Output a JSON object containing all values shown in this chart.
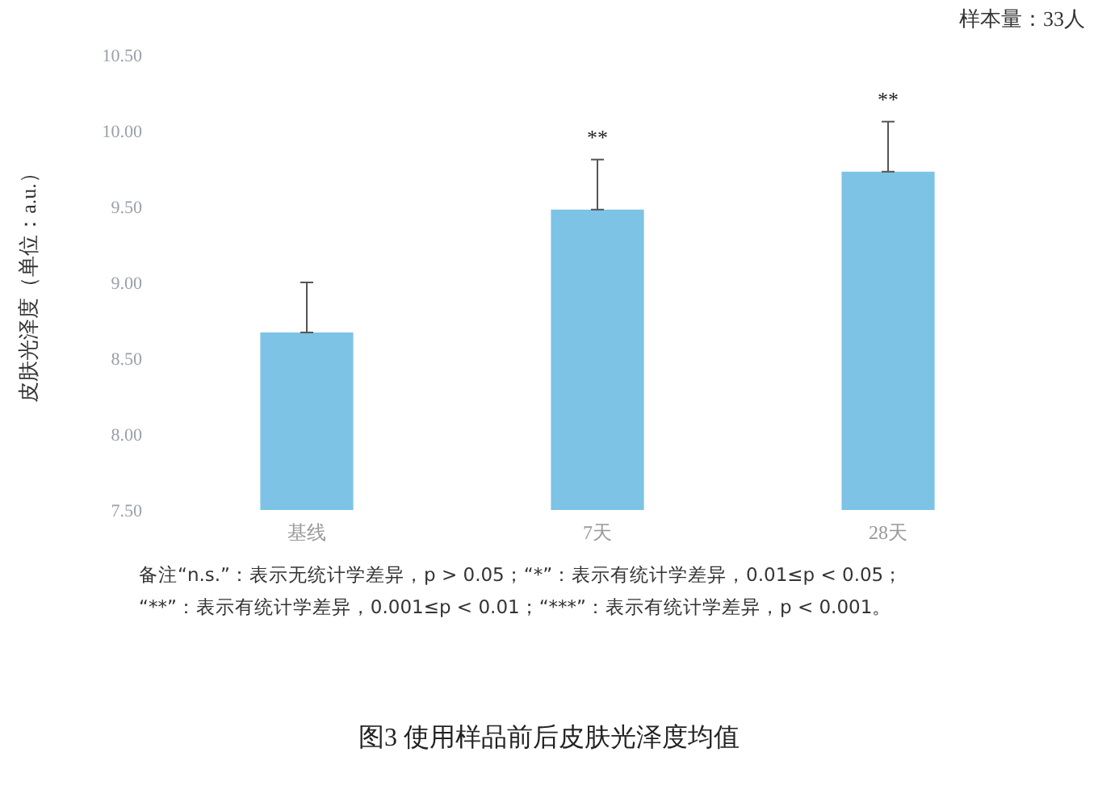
{
  "chart_data": {
    "type": "bar",
    "title": "图3  使用样品前后皮肤光泽度均值",
    "subtitle": "样本量：33人",
    "ylabel": "皮肤光泽度（单位：a.u.）",
    "categories": [
      "基线",
      "7天",
      "28天"
    ],
    "values": [
      8.67,
      9.48,
      9.73
    ],
    "errors": [
      [
        8.67,
        9.0
      ],
      [
        9.48,
        9.81
      ],
      [
        9.73,
        10.06
      ]
    ],
    "color": "#7cc3e6",
    "ylim": [
      7.5,
      10.5
    ],
    "yticks": [
      {
        "value": 7.5,
        "label": "7.50"
      },
      {
        "value": 8,
        "label": "8.00"
      },
      {
        "value": 8.5,
        "label": "8.50"
      },
      {
        "value": 9,
        "label": "9.00"
      },
      {
        "value": 9.5,
        "label": "9.50"
      },
      {
        "value": 10,
        "label": "10.00"
      },
      {
        "value": 10.5,
        "label": "10.50"
      }
    ],
    "annotations": [
      {
        "text": "**",
        "x": "7天",
        "y": 9.81
      },
      {
        "text": "**",
        "x": "28天",
        "y": 10.06
      },
      "备注“n.s.”：表示无统计学差异，p > 0.05；“*”：表示有统计学差异，0.01≤p < 0.05；",
      "“**”：表示有统计学差异，0.001≤p < 0.01；“***”：表示有统计学差异，p < 0.001。"
    ]
  }
}
